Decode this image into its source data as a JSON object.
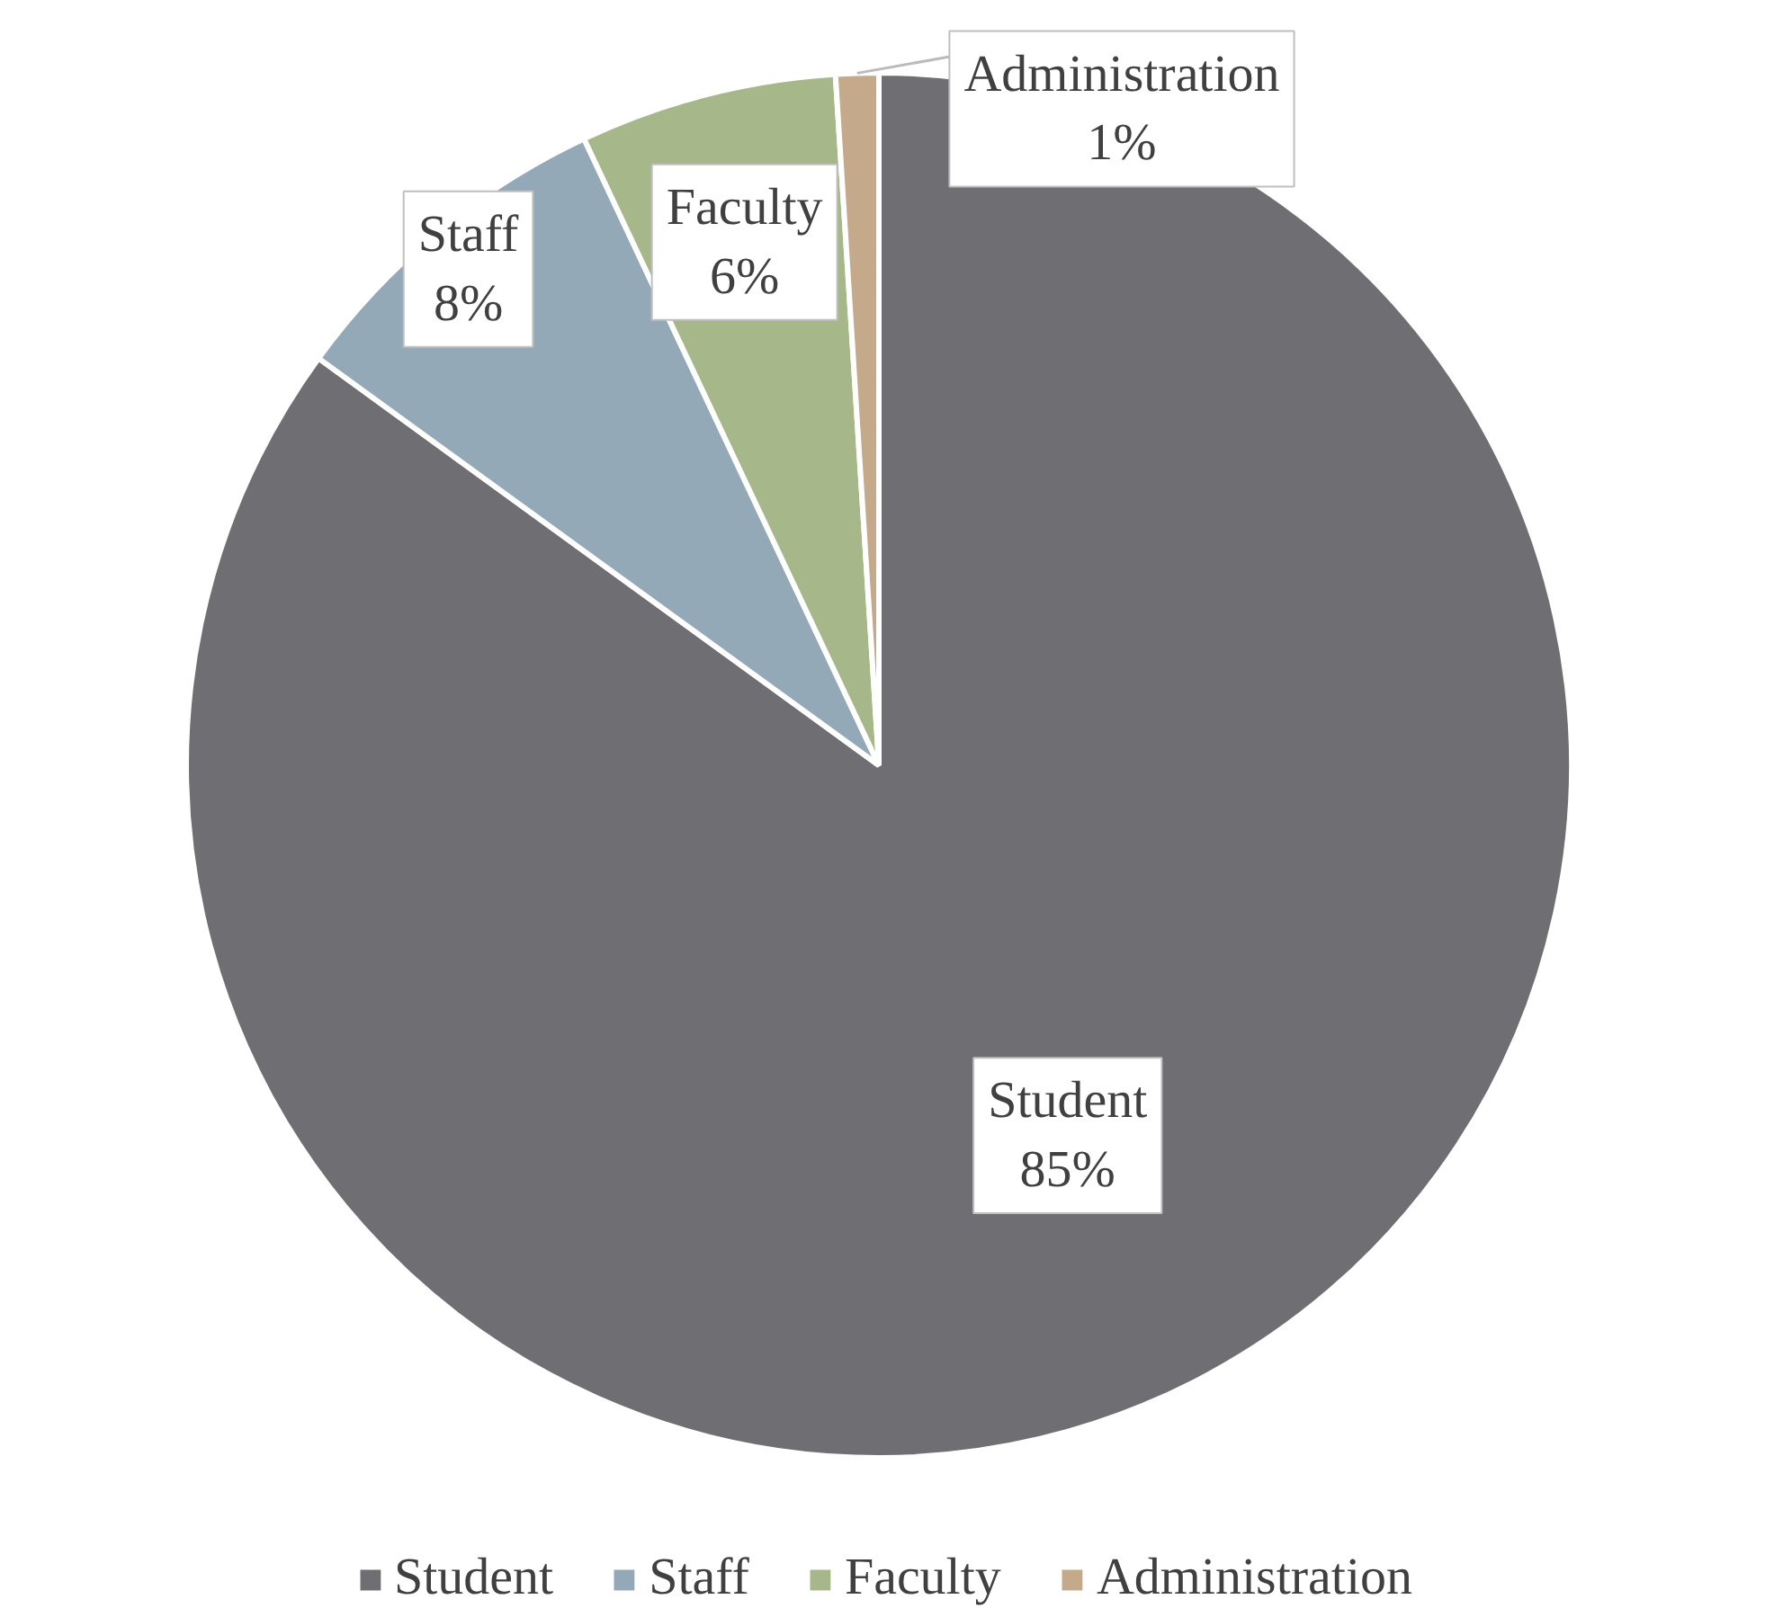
{
  "chart_data": {
    "type": "pie",
    "categories": [
      "Student",
      "Staff",
      "Faculty",
      "Administration"
    ],
    "values": [
      85,
      8,
      6,
      1
    ],
    "colors": [
      "#6f6e73",
      "#93a9b8",
      "#a6b88a",
      "#c4a98a"
    ],
    "value_labels": [
      "85%",
      "8%",
      "6%",
      "1%"
    ],
    "legend": "bottom"
  }
}
